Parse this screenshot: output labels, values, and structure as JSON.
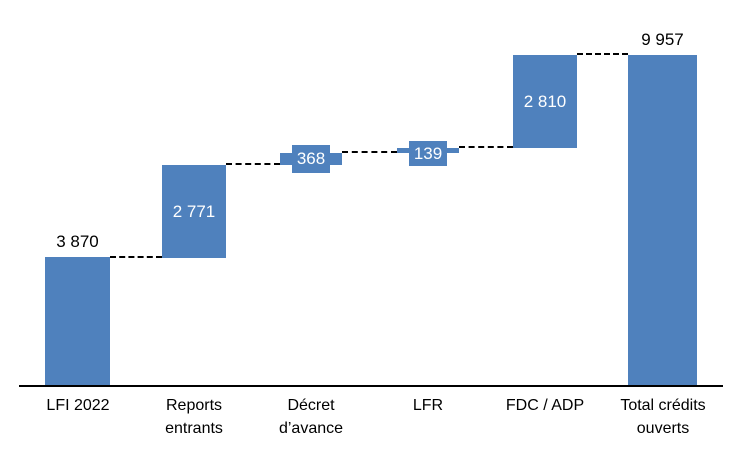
{
  "chart_data": {
    "type": "bar",
    "subtype": "waterfall",
    "title": "",
    "xlabel": "",
    "ylabel": "",
    "categories": [
      "LFI 2022",
      "Reports entrants",
      "Décret d’avance",
      "LFR",
      "FDC / ADP",
      "Total crédits ouverts"
    ],
    "values": [
      3870,
      2771,
      368,
      139,
      2810,
      9957
    ],
    "segment_starts": [
      0,
      3870,
      6641,
      7009,
      7148,
      0
    ],
    "cumulative_tops": [
      3870,
      6641,
      7009,
      7148,
      9958,
      9957
    ],
    "display_labels": [
      "3 870",
      "2 771",
      "368",
      "139",
      "2 810",
      "9 957"
    ],
    "label_placement": [
      "outside-above",
      "inside-center",
      "inside-badge",
      "inside-badge",
      "inside-center",
      "outside-above"
    ],
    "connector_style": "dashed",
    "bar_color": "#4F81BD",
    "inside_label_color": "#FFFFFF",
    "outside_label_color": "#000000",
    "axis_color": "#000000",
    "ylim": [
      0,
      10500
    ],
    "grid": false,
    "legend": false,
    "y_axis_visible": false
  },
  "x_axis": {
    "labels": [
      [
        "LFI 2022"
      ],
      [
        "Reports",
        "entrants"
      ],
      [
        "Décret",
        "d’avance"
      ],
      [
        "LFR"
      ],
      [
        "FDC / ADP"
      ],
      [
        "Total crédits",
        "ouverts"
      ]
    ]
  }
}
